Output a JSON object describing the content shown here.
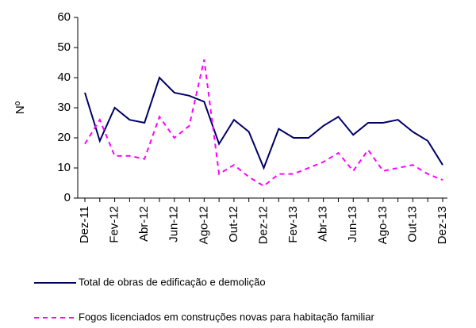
{
  "chart_data": {
    "type": "line",
    "y_label": "Nº",
    "categories": [
      "Dez-11",
      null,
      "Fev-12",
      null,
      "Abr-12",
      null,
      "Jun-12",
      null,
      "Ago-12",
      null,
      "Out-12",
      null,
      "Dez-12",
      null,
      "Fev-13",
      null,
      "Abr-13",
      null,
      "Jun-13",
      null,
      "Ago-13",
      null,
      "Out-13",
      null,
      "Dez-13"
    ],
    "series": [
      {
        "name": "Total de obras de edificação e demolição",
        "color": "#000066",
        "dash": false,
        "values": [
          35,
          19,
          30,
          26,
          25,
          40,
          35,
          34,
          32,
          18,
          26,
          22,
          10,
          23,
          20,
          20,
          24,
          27,
          21,
          25,
          25,
          26,
          22,
          19,
          11
        ]
      },
      {
        "name": "Fogos licenciados em construções novas para habitação familiar",
        "color": "#ff00ff",
        "dash": true,
        "values": [
          18,
          26,
          14,
          14,
          13,
          27,
          20,
          24,
          46,
          8,
          11,
          7,
          4,
          8,
          8,
          10,
          12,
          15,
          9,
          16,
          9,
          10,
          11,
          8,
          6
        ]
      }
    ],
    "ylim": [
      0,
      60
    ],
    "yticks": [
      0,
      10,
      20,
      30,
      40,
      50,
      60
    ]
  }
}
